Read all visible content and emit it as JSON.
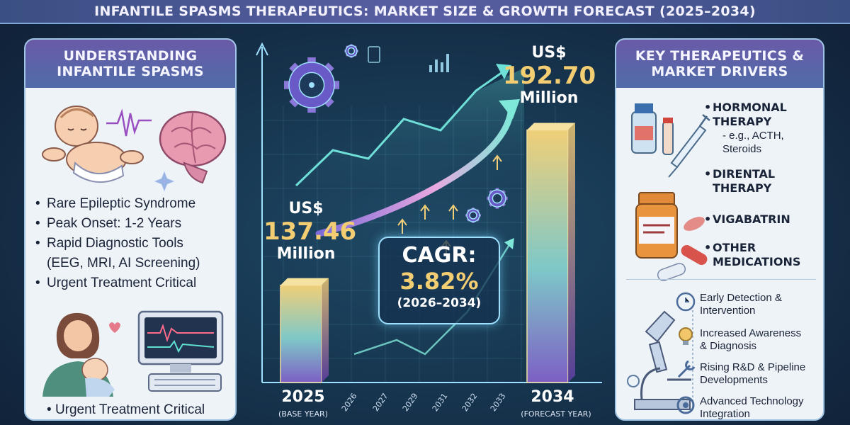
{
  "header": {
    "title": "Infantile Spasms Therapeutics: Market Size & Growth Forecast (2025–2034)"
  },
  "left_panel": {
    "title": "Understanding Infantile Spasms",
    "bullets": [
      "Rare Epileptic Syndrome",
      "Peak Onset: 1-2 Years",
      "Rapid Diagnostic Tools",
      "(EEG, MRI, AI Screening)",
      "Urgent Treatment Critical"
    ],
    "bottom_bullet": "Urgent Treatment Critical"
  },
  "right_panel": {
    "title": "Key Therapeutics & Market Drivers",
    "therapies": [
      {
        "name_line1": "Hormonal",
        "name_line2": "Therapy",
        "sub_line1": "- e.g., ACTH,",
        "sub_line2": "Steroids"
      },
      {
        "name_line1": "Dirental",
        "name_line2": "Therapy"
      },
      {
        "name_line1": "Vigabatrin"
      },
      {
        "name_line1": "Other",
        "name_line2": "Medications"
      }
    ],
    "drivers": [
      {
        "line1": "Early Detection &",
        "line2": "Intervention"
      },
      {
        "line1": "Increased Awareness",
        "line2": "& Diagnosis"
      },
      {
        "line1": "Rising R&D & Pipeline",
        "line2": "Developments"
      },
      {
        "line1": "Advanced Technology",
        "line2": "Integration"
      }
    ]
  },
  "chart_data": {
    "type": "bar",
    "categories": [
      "2025",
      "2034"
    ],
    "values": [
      137.46,
      192.7
    ],
    "value_labels": [
      {
        "currency": "US$",
        "number": "137.46",
        "unit": "Million"
      },
      {
        "currency": "US$",
        "number": "192.70",
        "unit": "Million"
      }
    ],
    "category_sublabels": [
      "(Base Year)",
      "(Forecast Year)"
    ],
    "intermediate_years": [
      "2026",
      "2027",
      "2029",
      "2031",
      "2032",
      "2033"
    ],
    "cagr": {
      "label": "CAGR:",
      "value": "3.82%",
      "range": "(2026–2034)"
    },
    "ylim": [
      0,
      200
    ],
    "colors": {
      "bar_top": "#f0cf78",
      "bar_bottom": "#7d5fc4",
      "trend_start": "#7b6ad8",
      "trend_end": "#7fe8d8"
    }
  }
}
